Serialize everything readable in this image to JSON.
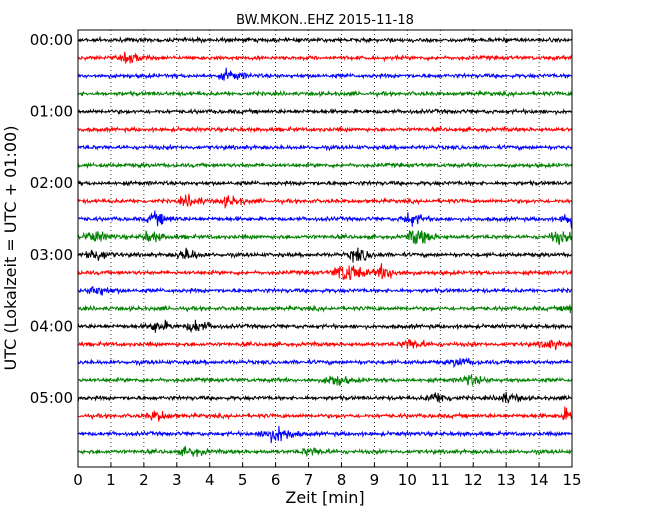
{
  "chart_data": {
    "type": "line",
    "title": "BW.MKON..EHZ 2015-11-18",
    "xlabel": "Zeit  [min]",
    "ylabel": "UTC (Lokalzeit = UTC + 01:00)",
    "xlim": [
      0,
      15
    ],
    "x_ticks": [
      "0",
      "1",
      "2",
      "3",
      "4",
      "5",
      "6",
      "7",
      "8",
      "9",
      "10",
      "11",
      "12",
      "13",
      "14",
      "15"
    ],
    "y_tick_labels": [
      "00:00",
      "01:00",
      "02:00",
      "03:00",
      "04:00",
      "05:00"
    ],
    "grid": "vertical dotted at each minute",
    "trace_colors": [
      "#000000",
      "#ff0000",
      "#0000ff",
      "#008000"
    ],
    "trace_count": 24,
    "trace_minutes": 15,
    "events": [
      {
        "trace": 2,
        "minute": 1.5,
        "amplitude": 1.2
      },
      {
        "trace": 3,
        "minute": 4.5,
        "amplitude": 1.3
      },
      {
        "trace": 10,
        "minute": 3.3,
        "amplitude": 1.4
      },
      {
        "trace": 10,
        "minute": 4.5,
        "amplitude": 1.3
      },
      {
        "trace": 11,
        "minute": 2.3,
        "amplitude": 1.5
      },
      {
        "trace": 11,
        "minute": 10.0,
        "amplitude": 1.6
      },
      {
        "trace": 11,
        "minute": 14.9,
        "amplitude": 2.2
      },
      {
        "trace": 12,
        "minute": 0.4,
        "amplitude": 1.5
      },
      {
        "trace": 12,
        "minute": 2.1,
        "amplitude": 1.4
      },
      {
        "trace": 12,
        "minute": 10.2,
        "amplitude": 2.2
      },
      {
        "trace": 12,
        "minute": 14.5,
        "amplitude": 1.6
      },
      {
        "trace": 13,
        "minute": 0.4,
        "amplitude": 1.8
      },
      {
        "trace": 13,
        "minute": 3.2,
        "amplitude": 1.5
      },
      {
        "trace": 13,
        "minute": 8.4,
        "amplitude": 1.6
      },
      {
        "trace": 14,
        "minute": 7.9,
        "amplitude": 1.8
      },
      {
        "trace": 14,
        "minute": 9.2,
        "amplitude": 1.8
      },
      {
        "trace": 14,
        "minute": 8.2,
        "amplitude": 1.6
      },
      {
        "trace": 15,
        "minute": 0.5,
        "amplitude": 1.4
      },
      {
        "trace": 16,
        "minute": 14.9,
        "amplitude": 1.2
      },
      {
        "trace": 17,
        "minute": 2.3,
        "amplitude": 1.5
      },
      {
        "trace": 17,
        "minute": 3.5,
        "amplitude": 1.6
      },
      {
        "trace": 18,
        "minute": 10.0,
        "amplitude": 1.5
      },
      {
        "trace": 18,
        "minute": 14.2,
        "amplitude": 1.2
      },
      {
        "trace": 19,
        "minute": 11.5,
        "amplitude": 1.1
      },
      {
        "trace": 20,
        "minute": 7.7,
        "amplitude": 1.6
      },
      {
        "trace": 20,
        "minute": 11.8,
        "amplitude": 1.3
      },
      {
        "trace": 21,
        "minute": 10.8,
        "amplitude": 1.5
      },
      {
        "trace": 21,
        "minute": 12.9,
        "amplitude": 1.4
      },
      {
        "trace": 22,
        "minute": 2.3,
        "amplitude": 1.2
      },
      {
        "trace": 22,
        "minute": 14.8,
        "amplitude": 1.6
      },
      {
        "trace": 23,
        "minute": 5.7,
        "amplitude": 1.5
      },
      {
        "trace": 23,
        "minute": 6.1,
        "amplitude": 1.5
      },
      {
        "trace": 24,
        "minute": 3.3,
        "amplitude": 1.1
      },
      {
        "trace": 24,
        "minute": 7.0,
        "amplitude": 1.1
      }
    ]
  }
}
